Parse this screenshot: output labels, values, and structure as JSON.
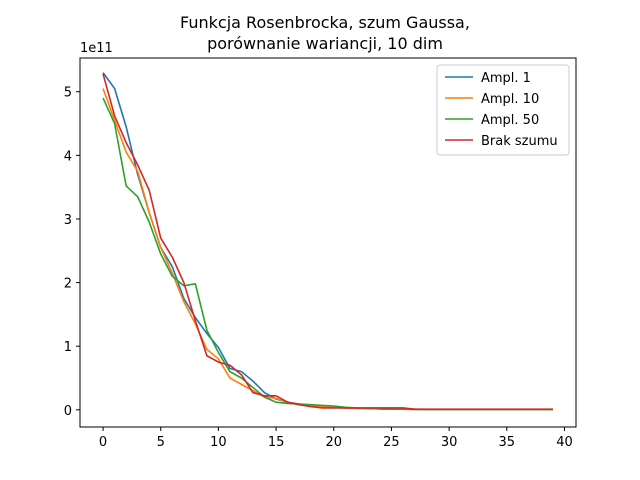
{
  "chart_data": {
    "type": "line",
    "title_line1": "Funkcja Rosenbrocka, szum Gaussa,",
    "title_line2": "porównanie wariancji, 10 dim",
    "xlabel": "",
    "ylabel": "",
    "y_offset_label": "1e11",
    "xlim": [
      -2,
      41
    ],
    "ylim": [
      -0.27,
      5.53
    ],
    "x_ticks": [
      0,
      5,
      10,
      15,
      20,
      25,
      30,
      35,
      40
    ],
    "y_ticks": [
      0,
      1,
      2,
      3,
      4,
      5
    ],
    "grid": false,
    "legend_position": "top-right",
    "x": [
      0,
      1,
      2,
      3,
      4,
      5,
      6,
      7,
      8,
      9,
      10,
      11,
      12,
      13,
      14,
      15,
      16,
      17,
      18,
      19,
      20,
      21,
      22,
      23,
      24,
      25,
      26,
      27,
      28,
      29,
      30,
      31,
      32,
      33,
      34,
      35,
      36,
      37,
      38,
      39
    ],
    "series": [
      {
        "name": "Ampl. 1",
        "color": "#1f77b4",
        "values": [
          5.3,
          5.05,
          4.45,
          3.7,
          3.1,
          2.55,
          2.25,
          1.75,
          1.45,
          1.2,
          0.98,
          0.65,
          0.6,
          0.45,
          0.27,
          0.17,
          0.12,
          0.09,
          0.07,
          0.05,
          0.04,
          0.03,
          0.025,
          0.02,
          0.015,
          0.01,
          0.01,
          0.01,
          0.005,
          0.005,
          0.005,
          0.005,
          0.005,
          0.005,
          0.005,
          0.005,
          0.005,
          0.005,
          0.005,
          0.005
        ]
      },
      {
        "name": "Ampl. 10",
        "color": "#ff7f0e",
        "values": [
          5.05,
          4.55,
          4.05,
          3.75,
          3.1,
          2.55,
          2.15,
          1.7,
          1.35,
          0.95,
          0.8,
          0.5,
          0.4,
          0.3,
          0.2,
          0.18,
          0.12,
          0.08,
          0.06,
          0.05,
          0.04,
          0.03,
          0.02,
          0.02,
          0.015,
          0.01,
          0.01,
          0.005,
          0.005,
          0.005,
          0.005,
          0.005,
          0.005,
          0.005,
          0.005,
          0.005,
          0.005,
          0.005,
          0.005,
          0.005
        ]
      },
      {
        "name": "Ampl. 50",
        "color": "#2ca02c",
        "values": [
          4.9,
          4.5,
          3.52,
          3.35,
          2.95,
          2.45,
          2.1,
          1.95,
          1.98,
          1.25,
          0.9,
          0.6,
          0.5,
          0.35,
          0.2,
          0.12,
          0.1,
          0.09,
          0.08,
          0.07,
          0.06,
          0.04,
          0.03,
          0.02,
          0.015,
          0.01,
          0.01,
          0.005,
          0.005,
          0.005,
          0.005,
          0.005,
          0.005,
          0.005,
          0.005,
          0.005,
          0.005,
          0.005,
          0.005,
          0.005
        ]
      },
      {
        "name": "Brak szumu",
        "color": "#d62728",
        "values": [
          5.28,
          4.62,
          4.2,
          3.85,
          3.45,
          2.7,
          2.4,
          2.0,
          1.4,
          0.85,
          0.75,
          0.7,
          0.55,
          0.27,
          0.22,
          0.22,
          0.12,
          0.08,
          0.05,
          0.03,
          0.03,
          0.03,
          0.03,
          0.03,
          0.03,
          0.03,
          0.03,
          0.01,
          0.01,
          0.01,
          0.01,
          0.01,
          0.01,
          0.01,
          0.01,
          0.01,
          0.01,
          0.01,
          0.01,
          0.01
        ]
      }
    ]
  }
}
